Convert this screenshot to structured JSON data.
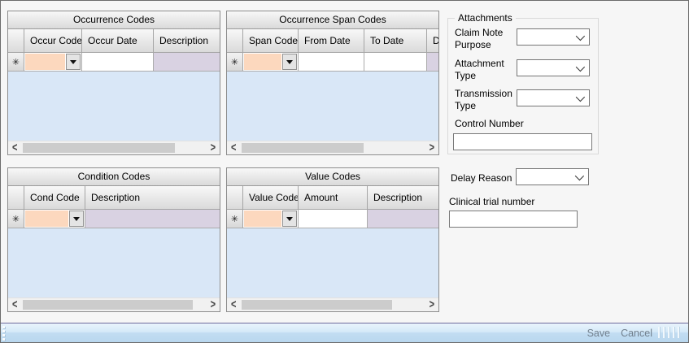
{
  "window": {
    "background": "#F6F6F6",
    "border_color": "#6B6B6B"
  },
  "icons": {
    "new_row_marker": "✳",
    "scroll_left_arrow": "<",
    "scroll_right_arrow": ">",
    "dropdown_arrow": "▼",
    "combo_chevron": "⌄"
  },
  "colors": {
    "combo_cell_peach": "#FCD8BE",
    "description_cell_lavender": "#D9D2E2",
    "grid_body_blue": "#D9E7F7",
    "grid_header_gradient_top": "#F8F8F8",
    "grid_header_gradient_bottom": "#DADADA",
    "statusbar_link": "#72808E",
    "statusbar_gradient_top": "#E9F4FC",
    "statusbar_gradient_bottom": "#B9D7EE",
    "statusbar_top_border": "#6D6B9C"
  },
  "grids": [
    {
      "title": "Occurrence Codes",
      "columns": [
        "Occur Code",
        "Occur Date",
        "Description"
      ]
    },
    {
      "title": "Occurrence Span Codes",
      "columns": [
        "Span Code",
        "From Date",
        "To Date",
        "Description"
      ]
    },
    {
      "title": "Condition Codes",
      "columns": [
        "Cond Code",
        "Description"
      ]
    },
    {
      "title": "Value Codes",
      "columns": [
        "Value Code",
        "Amount",
        "Description"
      ]
    }
  ],
  "attachments": {
    "title": "Attachments",
    "claim_note_purpose": {
      "label": "Claim Note Purpose",
      "value": ""
    },
    "attachment_type": {
      "label": "Attachment Type",
      "value": ""
    },
    "transmission_type": {
      "label": "Transmission Type",
      "value": ""
    },
    "control_number": {
      "label": "Control Number",
      "value": ""
    }
  },
  "delay_reason": {
    "label": "Delay Reason",
    "value": ""
  },
  "clinical_trial_number": {
    "label": "Clinical trial number",
    "value": ""
  },
  "statusbar": {
    "save_label": "Save",
    "cancel_label": "Cancel"
  }
}
